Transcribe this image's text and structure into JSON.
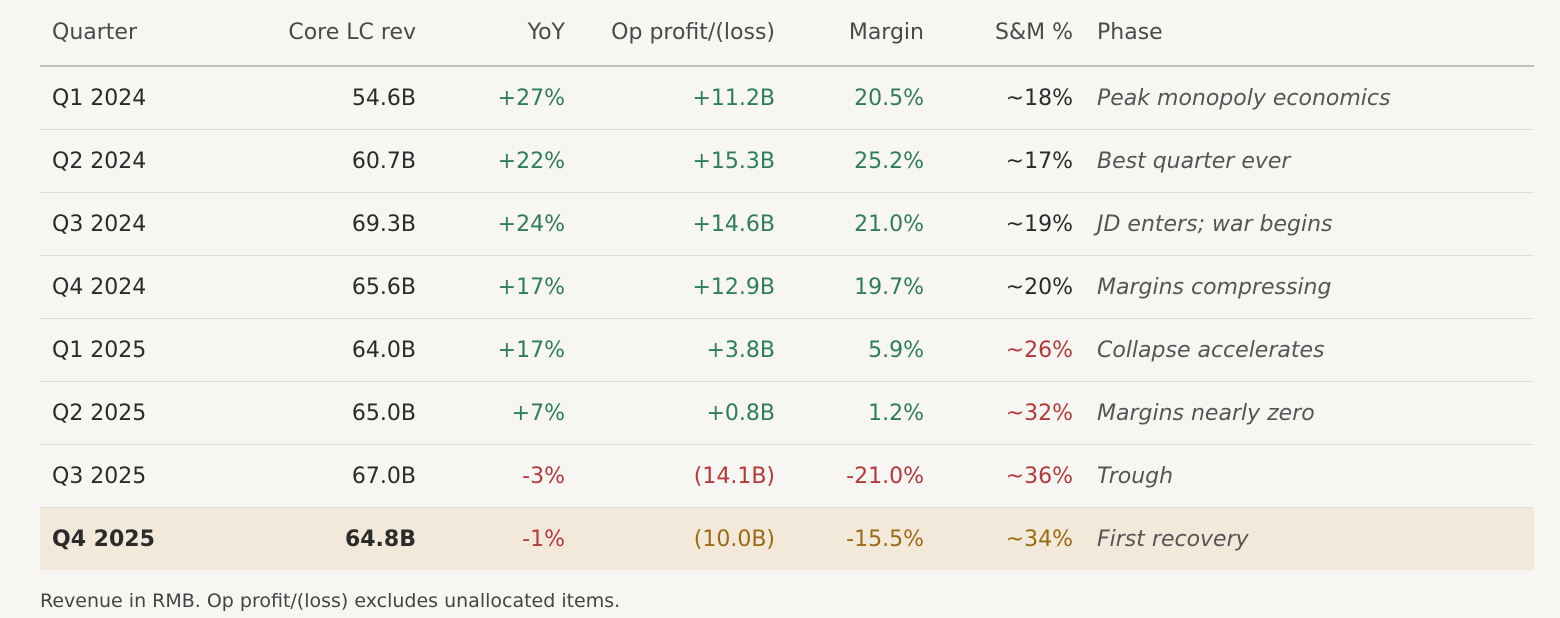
{
  "table": {
    "headers": {
      "quarter": "Quarter",
      "revenue": "Core LC rev",
      "yoy": "YoY",
      "op_profit": "Op profit/(loss)",
      "margin": "Margin",
      "sm_pct": "S&M %",
      "phase": "Phase"
    },
    "rows": [
      {
        "quarter": "Q1 2024",
        "revenue": "54.6B",
        "yoy": "+27%",
        "op_profit": "+11.2B",
        "margin": "20.5%",
        "sm_pct": "~18%",
        "phase": "Peak monopoly economics"
      },
      {
        "quarter": "Q2 2024",
        "revenue": "60.7B",
        "yoy": "+22%",
        "op_profit": "+15.3B",
        "margin": "25.2%",
        "sm_pct": "~17%",
        "phase": "Best quarter ever"
      },
      {
        "quarter": "Q3 2024",
        "revenue": "69.3B",
        "yoy": "+24%",
        "op_profit": "+14.6B",
        "margin": "21.0%",
        "sm_pct": "~19%",
        "phase": "JD enters; war begins"
      },
      {
        "quarter": "Q4 2024",
        "revenue": "65.6B",
        "yoy": "+17%",
        "op_profit": "+12.9B",
        "margin": "19.7%",
        "sm_pct": "~20%",
        "phase": "Margins compressing"
      },
      {
        "quarter": "Q1 2025",
        "revenue": "64.0B",
        "yoy": "+17%",
        "op_profit": "+3.8B",
        "margin": "5.9%",
        "sm_pct": "~26%",
        "phase": "Collapse accelerates"
      },
      {
        "quarter": "Q2 2025",
        "revenue": "65.0B",
        "yoy": "+7%",
        "op_profit": "+0.8B",
        "margin": "1.2%",
        "sm_pct": "~32%",
        "phase": "Margins nearly zero"
      },
      {
        "quarter": "Q3 2025",
        "revenue": "67.0B",
        "yoy": "-3%",
        "op_profit": "(14.1B)",
        "margin": "-21.0%",
        "sm_pct": "~36%",
        "phase": "Trough"
      },
      {
        "quarter": "Q4 2025",
        "revenue": "64.8B",
        "yoy": "-1%",
        "op_profit": "(10.0B)",
        "margin": "-15.5%",
        "sm_pct": "~34%",
        "phase": "First recovery"
      }
    ]
  },
  "footnote": "Revenue in RMB. Op profit/(loss) excludes unallocated items.",
  "colors": {
    "positive": "#2e7d5b",
    "negative": "#b23a3a",
    "recovery": "#9a6a14",
    "highlight_row": "#f3e9da",
    "background": "#f8f6f2"
  }
}
